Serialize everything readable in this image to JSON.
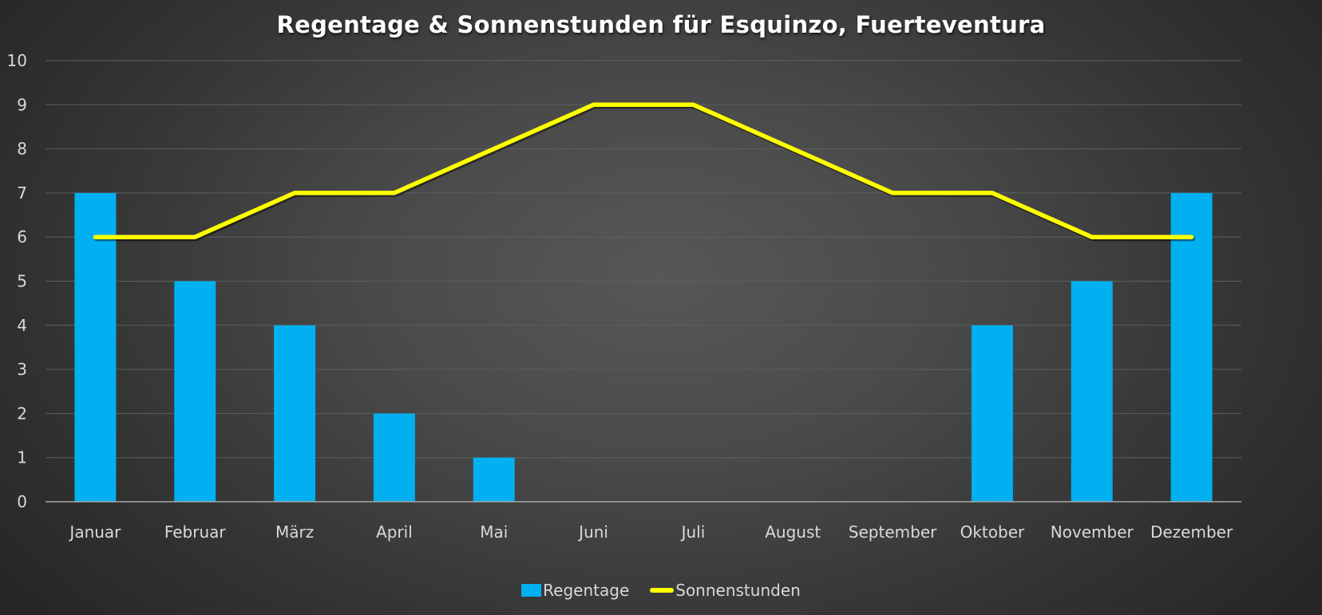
{
  "chart_data": {
    "type": "bar+line",
    "title": "Regentage & Sonnenstunden für Esquinzo, Fuerteventura",
    "xlabel": "",
    "ylabel": "",
    "ylim": [
      0,
      10
    ],
    "yticks": [
      0,
      1,
      2,
      3,
      4,
      5,
      6,
      7,
      8,
      9,
      10
    ],
    "grid": true,
    "legend_position": "bottom",
    "categories": [
      "Januar",
      "Februar",
      "März",
      "April",
      "Mai",
      "Juni",
      "Juli",
      "August",
      "September",
      "Oktober",
      "November",
      "Dezember"
    ],
    "series": [
      {
        "name": "Regentage",
        "type": "bar",
        "color": "#00B0F0",
        "values": [
          7,
          5,
          4,
          2,
          1,
          0,
          0,
          0,
          0,
          4,
          5,
          7
        ]
      },
      {
        "name": "Sonnenstunden",
        "type": "line",
        "color": "#FFFF00",
        "values": [
          6,
          6,
          7,
          7,
          8,
          9,
          9,
          8,
          7,
          7,
          6,
          6
        ]
      }
    ]
  },
  "legend": {
    "items": [
      {
        "label": "Regentage",
        "color": "#00B0F0",
        "kind": "bar"
      },
      {
        "label": "Sonnenstunden",
        "color": "#FFFF00",
        "kind": "line"
      }
    ]
  }
}
